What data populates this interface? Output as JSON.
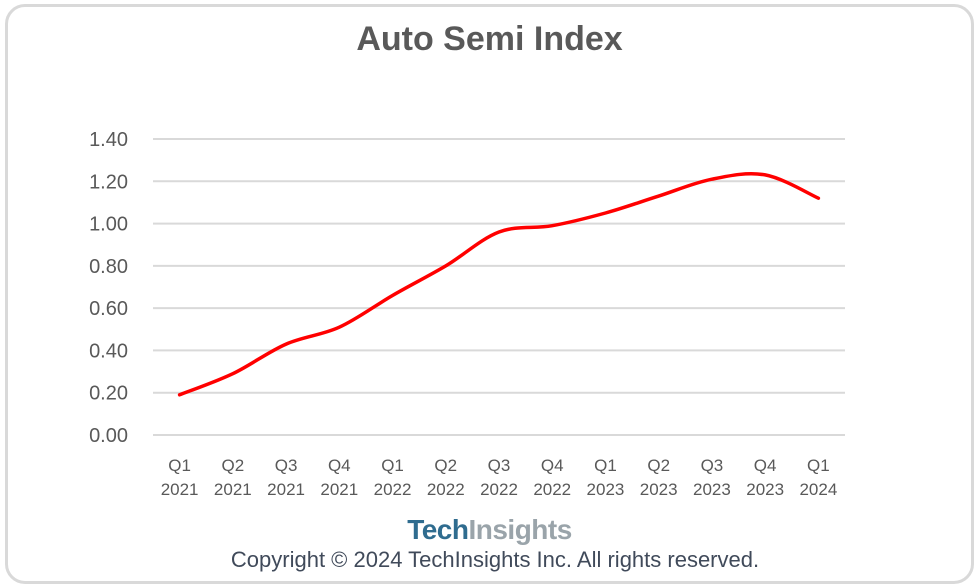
{
  "logo": {
    "part1": "Tech",
    "part2": "Insights"
  },
  "footer": {
    "copyright": "Copyright © 2024 TechInsights Inc.  All rights reserved."
  },
  "colors": {
    "line": "#ff0000",
    "grid": "#d9d9d9",
    "axis_text": "#595959",
    "logo_primary": "#2f6c8f",
    "logo_secondary": "#9aa4aa"
  },
  "chart_data": {
    "type": "line",
    "title": "Auto Semi Index",
    "xlabel": "",
    "ylabel": "",
    "categories": [
      [
        "Q1",
        "2021"
      ],
      [
        "Q2",
        "2021"
      ],
      [
        "Q3",
        "2021"
      ],
      [
        "Q4",
        "2021"
      ],
      [
        "Q1",
        "2022"
      ],
      [
        "Q2",
        "2022"
      ],
      [
        "Q3",
        "2022"
      ],
      [
        "Q4",
        "2022"
      ],
      [
        "Q1",
        "2023"
      ],
      [
        "Q2",
        "2023"
      ],
      [
        "Q3",
        "2023"
      ],
      [
        "Q4",
        "2023"
      ],
      [
        "Q1",
        "2024"
      ]
    ],
    "series": [
      {
        "values": [
          0.19,
          0.29,
          0.43,
          0.51,
          0.66,
          0.8,
          0.96,
          0.99,
          1.05,
          1.13,
          1.21,
          1.23,
          1.12
        ],
        "smooth": true
      }
    ],
    "ylim": [
      0,
      1.4
    ],
    "yticks": [
      "0.00",
      "0.20",
      "0.40",
      "0.60",
      "0.80",
      "1.00",
      "1.20",
      "1.40"
    ],
    "grid": "horizontal",
    "legend": "none"
  }
}
